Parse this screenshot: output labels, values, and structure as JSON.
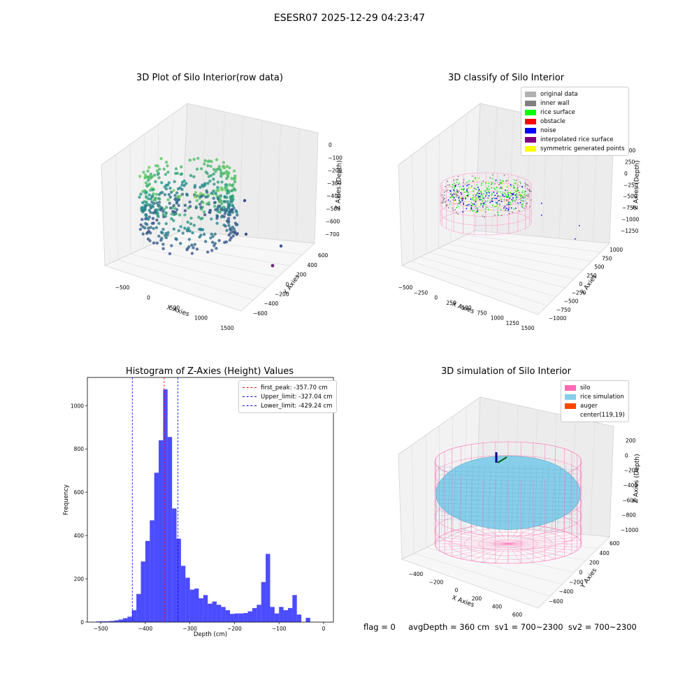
{
  "suptitle": "ESESR07 2025-12-29 04:23:47",
  "footer": "flag = 0     avgDepth = 360 cm  sv1 = 700~2300  sv2 = 700~2300",
  "chart_data": [
    {
      "type": "scatter",
      "projection": "3d",
      "title": "3D Plot of Silo Interior(row data)",
      "xlabel": "X Axies",
      "ylabel": "Y Axies",
      "zlabel": "Z Axies (Depth)",
      "xticks": [
        "−500",
        "0",
        "500",
        "1000",
        "1500"
      ],
      "yticks": [
        "600",
        "400",
        "200",
        "0",
        "−200",
        "−400",
        "−600"
      ],
      "zticks": [
        "0",
        "−100",
        "−200",
        "−300",
        "−400",
        "−500",
        "−600",
        "−700"
      ],
      "colormap": "viridis"
    },
    {
      "type": "scatter",
      "projection": "3d",
      "title": "3D classify of Silo Interior",
      "xlabel": "X Axies",
      "ylabel": "Y Axies",
      "zlabel": "Z Axies (Depth)",
      "xticks": [
        "−500",
        "−250",
        "0",
        "250",
        "500",
        "750",
        "1000",
        "1250",
        "1500"
      ],
      "yticks": [
        "1000",
        "750",
        "500",
        "250",
        "0",
        "−250",
        "−500",
        "−750",
        "−1000"
      ],
      "zticks": [
        "500",
        "250",
        "0",
        "−250",
        "−500",
        "−750",
        "−1000",
        "−1250"
      ],
      "legend": [
        {
          "label": "original data",
          "color": "#b0b0b0"
        },
        {
          "label": "inner wall",
          "color": "#808080"
        },
        {
          "label": "rice surface",
          "color": "#00ff00"
        },
        {
          "label": "obstacle",
          "color": "#ff0000"
        },
        {
          "label": "noise",
          "color": "#0000ff"
        },
        {
          "label": "interpolated rice surface",
          "color": "#800080"
        },
        {
          "label": "symmetric generated points",
          "color": "#ffff00"
        }
      ]
    },
    {
      "type": "bar",
      "title": "Histogram of Z-Axies (Height) Values",
      "xlabel": "Depth (cm)",
      "ylabel": "Frequency",
      "xlim": [
        -530,
        22
      ],
      "ylim": [
        0,
        1130
      ],
      "xticks": [
        -500,
        -400,
        -300,
        -200,
        -100,
        0
      ],
      "yticks": [
        0,
        200,
        400,
        600,
        800,
        1000
      ],
      "bin_width": 10,
      "bin_start": -510,
      "values": [
        3,
        4,
        4,
        5,
        8,
        12,
        18,
        25,
        55,
        130,
        280,
        375,
        470,
        690,
        840,
        1075,
        855,
        525,
        385,
        260,
        205,
        150,
        155,
        110,
        125,
        85,
        95,
        80,
        70,
        55,
        38,
        40,
        40,
        42,
        50,
        65,
        80,
        185,
        315,
        70,
        40,
        70,
        55,
        65,
        125,
        35,
        0,
        20
      ],
      "bar_color": "#0000ff",
      "lines": [
        {
          "label": "first_peak: -357.70 cm",
          "x": -357.7,
          "color": "#ff0000"
        },
        {
          "label": "Upper_limit: -327.04 cm",
          "x": -327.04,
          "color": "#0000ff"
        },
        {
          "label": "Lower_limit: -429.24 cm",
          "x": -429.24,
          "color": "#0000ff"
        }
      ]
    },
    {
      "type": "surface",
      "projection": "3d",
      "title": "3D simulation of Silo Interior",
      "xlabel": "X Axies",
      "ylabel": "Y Axies",
      "zlabel": "Z Axies (Depth)",
      "xticks": [
        "−400",
        "−200",
        "0",
        "200",
        "400",
        "600"
      ],
      "yticks": [
        "600",
        "400",
        "200",
        "0",
        "−200",
        "−400",
        "−600"
      ],
      "zticks": [
        "200",
        "0",
        "−200",
        "−400",
        "−600",
        "−800",
        "−1000"
      ],
      "legend": [
        {
          "label": "silo",
          "color": "#ff69b4"
        },
        {
          "label": "rice simulation",
          "color": "#87ceeb"
        },
        {
          "label": "auger",
          "color": "#ff4500"
        },
        {
          "label": "center(119,19)",
          "color": "#ffffff"
        }
      ]
    }
  ]
}
